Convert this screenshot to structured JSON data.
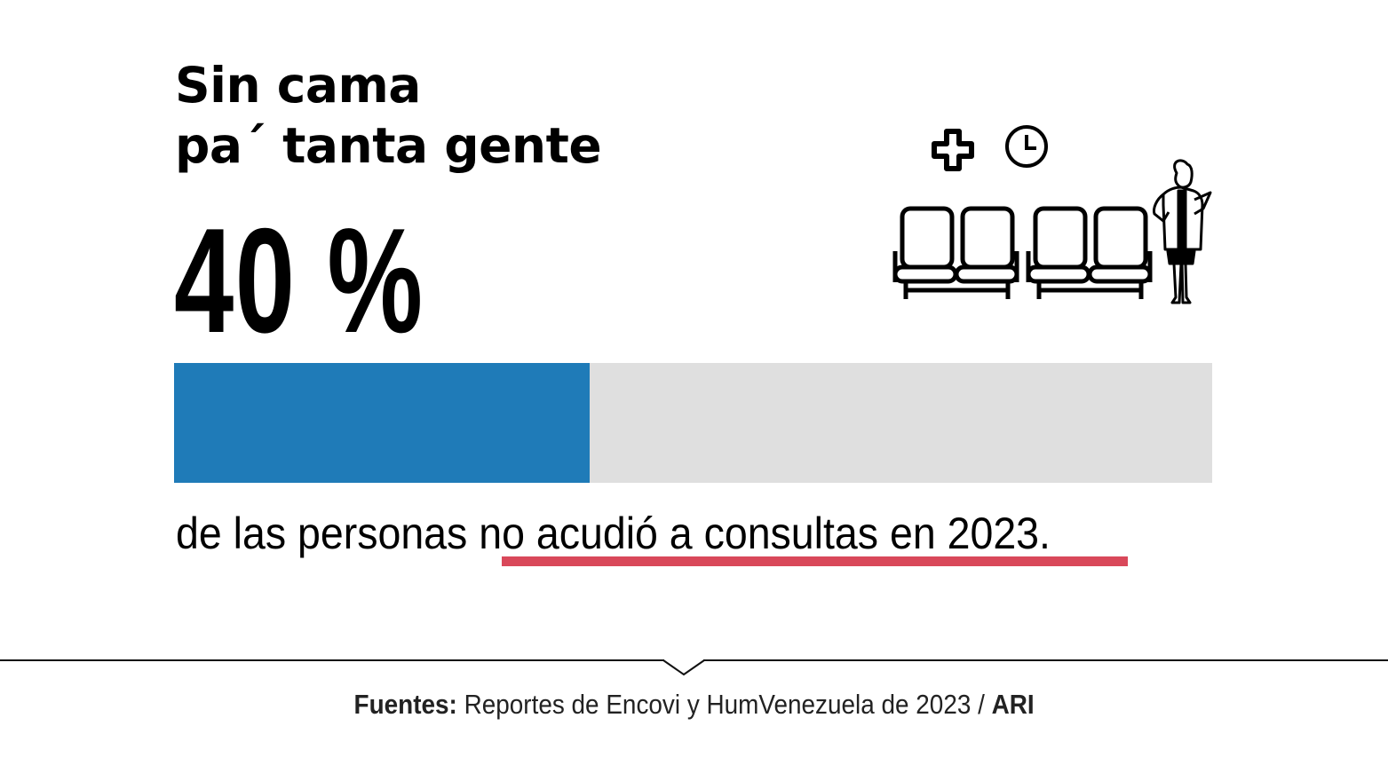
{
  "title": {
    "line1": "Sin cama",
    "line2": "pa´ tanta gente"
  },
  "headline_value": "40 %",
  "subtitle": {
    "prefix": "de las personas ",
    "highlight": "no acudió a consultas en 2023."
  },
  "source": {
    "label": "Fuentes:",
    "text": " Reportes de Encovi y HumVenezuela de 2023 / ",
    "credit": "ARI"
  },
  "icons": [
    "medical-cross-icon",
    "clock-icon",
    "waiting-chairs-icon",
    "doctor-icon"
  ],
  "colors": {
    "fill": "#1f7bb8",
    "track": "#dfdfdf",
    "underline": "#d9485a"
  },
  "chart_data": {
    "type": "bar",
    "orientation": "horizontal",
    "categories": [
      "no acudió a consultas en 2023"
    ],
    "values": [
      40
    ],
    "unit": "%",
    "xlim": [
      0,
      100
    ],
    "title": "Sin cama pa´ tanta gente",
    "xlabel": "",
    "ylabel": "",
    "grid": false
  }
}
